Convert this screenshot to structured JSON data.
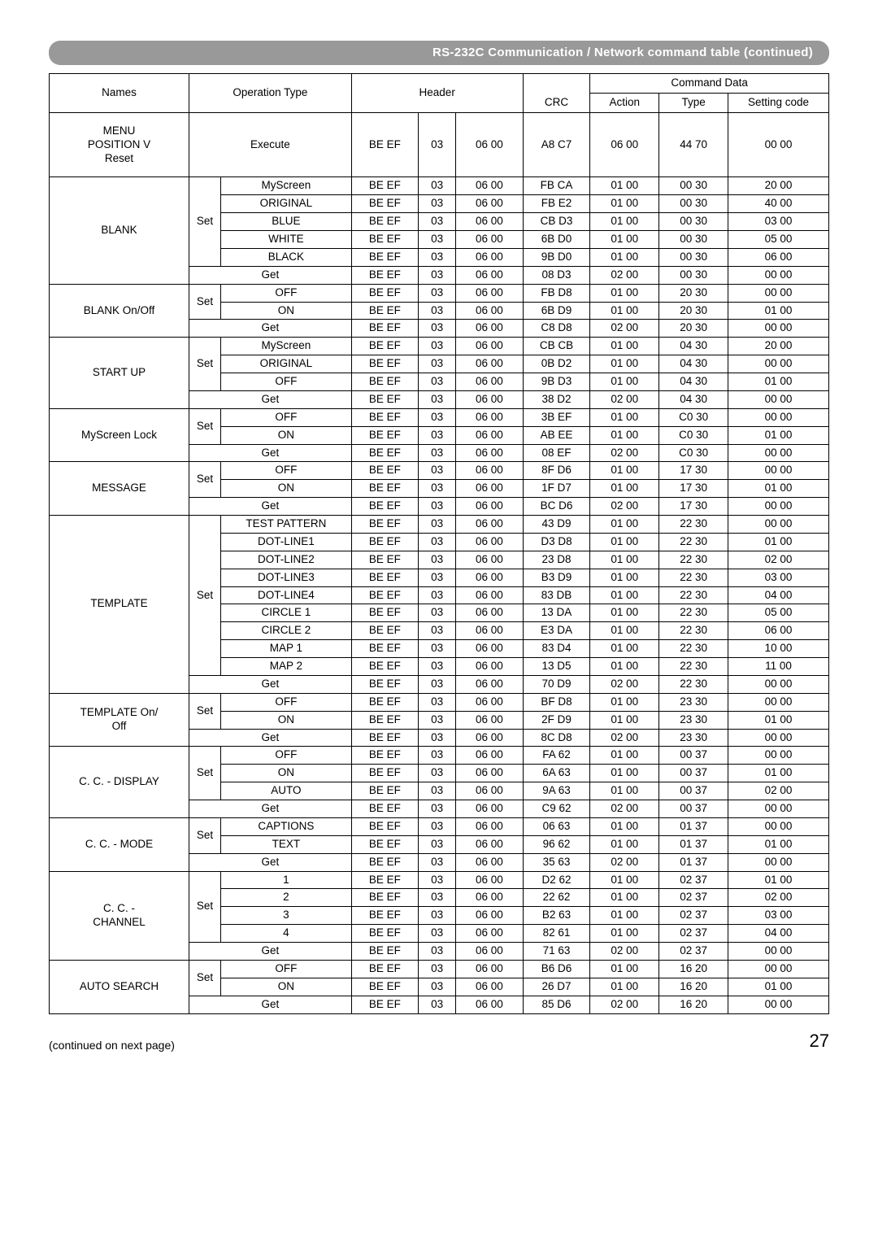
{
  "header_title": "RS-232C Communication / Network command table (continued)",
  "columns": {
    "names": "Names",
    "optype": "Operation Type",
    "header": "Header",
    "crc": "CRC",
    "cmddata": "Command Data",
    "action": "Action",
    "type": "Type",
    "setcode": "Setting code"
  },
  "footer_left": "(continued on next page)",
  "page_number": "27",
  "groups": [
    {
      "name": "MENU POSITION V Reset",
      "rows": [
        {
          "set": null,
          "op": "Execute",
          "h1": "BE EF",
          "h2": "03",
          "h3": "06 00",
          "crc": "A8 C7",
          "action": "06 00",
          "type": "44 70",
          "setcode": "00 00"
        }
      ]
    },
    {
      "name": "BLANK",
      "rows": [
        {
          "set": "Set",
          "setspan": 5,
          "op": "MyScreen",
          "h1": "BE EF",
          "h2": "03",
          "h3": "06 00",
          "crc": "FB CA",
          "action": "01 00",
          "type": "00 30",
          "setcode": "20 00"
        },
        {
          "op": "ORIGINAL",
          "h1": "BE EF",
          "h2": "03",
          "h3": "06 00",
          "crc": "FB E2",
          "action": "01 00",
          "type": "00 30",
          "setcode": "40 00"
        },
        {
          "op": "BLUE",
          "h1": "BE EF",
          "h2": "03",
          "h3": "06 00",
          "crc": "CB D3",
          "action": "01 00",
          "type": "00 30",
          "setcode": "03 00"
        },
        {
          "op": "WHITE",
          "h1": "BE EF",
          "h2": "03",
          "h3": "06 00",
          "crc": "6B D0",
          "action": "01 00",
          "type": "00 30",
          "setcode": "05 00"
        },
        {
          "op": "BLACK",
          "h1": "BE EF",
          "h2": "03",
          "h3": "06 00",
          "crc": "9B D0",
          "action": "01 00",
          "type": "00 30",
          "setcode": "06 00"
        },
        {
          "set": null,
          "op": "Get",
          "opspan": 2,
          "h1": "BE EF",
          "h2": "03",
          "h3": "06 00",
          "crc": "08 D3",
          "action": "02 00",
          "type": "00 30",
          "setcode": "00 00"
        }
      ]
    },
    {
      "name": "BLANK On/Off",
      "rows": [
        {
          "set": "Set",
          "setspan": 2,
          "op": "OFF",
          "h1": "BE EF",
          "h2": "03",
          "h3": "06 00",
          "crc": "FB D8",
          "action": "01 00",
          "type": "20 30",
          "setcode": "00 00"
        },
        {
          "op": "ON",
          "h1": "BE EF",
          "h2": "03",
          "h3": "06 00",
          "crc": "6B D9",
          "action": "01 00",
          "type": "20 30",
          "setcode": "01 00"
        },
        {
          "set": null,
          "op": "Get",
          "opspan": 2,
          "h1": "BE EF",
          "h2": "03",
          "h3": "06 00",
          "crc": "C8 D8",
          "action": "02 00",
          "type": "20 30",
          "setcode": "00 00"
        }
      ]
    },
    {
      "name": "START UP",
      "rows": [
        {
          "set": "Set",
          "setspan": 3,
          "op": "MyScreen",
          "h1": "BE EF",
          "h2": "03",
          "h3": "06 00",
          "crc": "CB CB",
          "action": "01 00",
          "type": "04 30",
          "setcode": "20 00"
        },
        {
          "op": "ORIGINAL",
          "h1": "BE EF",
          "h2": "03",
          "h3": "06 00",
          "crc": "0B D2",
          "action": "01 00",
          "type": "04 30",
          "setcode": "00 00"
        },
        {
          "op": "OFF",
          "h1": "BE EF",
          "h2": "03",
          "h3": "06 00",
          "crc": "9B D3",
          "action": "01 00",
          "type": "04 30",
          "setcode": "01 00"
        },
        {
          "set": null,
          "op": "Get",
          "opspan": 2,
          "h1": "BE EF",
          "h2": "03",
          "h3": "06 00",
          "crc": "38 D2",
          "action": "02 00",
          "type": "04 30",
          "setcode": "00 00"
        }
      ]
    },
    {
      "name": "MyScreen Lock",
      "rows": [
        {
          "set": "Set",
          "setspan": 2,
          "op": "OFF",
          "h1": "BE EF",
          "h2": "03",
          "h3": "06 00",
          "crc": "3B EF",
          "action": "01 00",
          "type": "C0 30",
          "setcode": "00 00"
        },
        {
          "op": "ON",
          "h1": "BE EF",
          "h2": "03",
          "h3": "06 00",
          "crc": "AB EE",
          "action": "01 00",
          "type": "C0 30",
          "setcode": "01 00"
        },
        {
          "set": null,
          "op": "Get",
          "opspan": 2,
          "h1": "BE EF",
          "h2": "03",
          "h3": "06 00",
          "crc": "08 EF",
          "action": "02 00",
          "type": "C0 30",
          "setcode": "00 00"
        }
      ]
    },
    {
      "name": "MESSAGE",
      "rows": [
        {
          "set": "Set",
          "setspan": 2,
          "op": "OFF",
          "h1": "BE EF",
          "h2": "03",
          "h3": "06 00",
          "crc": "8F D6",
          "action": "01 00",
          "type": "17 30",
          "setcode": "00 00"
        },
        {
          "op": "ON",
          "h1": "BE EF",
          "h2": "03",
          "h3": "06 00",
          "crc": "1F D7",
          "action": "01 00",
          "type": "17 30",
          "setcode": "01 00"
        },
        {
          "set": null,
          "op": "Get",
          "opspan": 2,
          "h1": "BE EF",
          "h2": "03",
          "h3": "06 00",
          "crc": "BC D6",
          "action": "02 00",
          "type": "17 30",
          "setcode": "00 00"
        }
      ]
    },
    {
      "name": "TEMPLATE",
      "rows": [
        {
          "set": "Set",
          "setspan": 9,
          "op": "TEST PATTERN",
          "h1": "BE EF",
          "h2": "03",
          "h3": "06 00",
          "crc": "43 D9",
          "action": "01 00",
          "type": "22 30",
          "setcode": "00 00"
        },
        {
          "op": "DOT-LINE1",
          "h1": "BE EF",
          "h2": "03",
          "h3": "06 00",
          "crc": "D3 D8",
          "action": "01 00",
          "type": "22 30",
          "setcode": "01 00"
        },
        {
          "op": "DOT-LINE2",
          "h1": "BE EF",
          "h2": "03",
          "h3": "06 00",
          "crc": "23 D8",
          "action": "01 00",
          "type": "22 30",
          "setcode": "02 00"
        },
        {
          "op": "DOT-LINE3",
          "h1": "BE EF",
          "h2": "03",
          "h3": "06 00",
          "crc": "B3 D9",
          "action": "01 00",
          "type": "22 30",
          "setcode": "03 00"
        },
        {
          "op": "DOT-LINE4",
          "h1": "BE EF",
          "h2": "03",
          "h3": "06 00",
          "crc": "83 DB",
          "action": "01 00",
          "type": "22 30",
          "setcode": "04 00"
        },
        {
          "op": "CIRCLE 1",
          "h1": "BE EF",
          "h2": "03",
          "h3": "06 00",
          "crc": "13 DA",
          "action": "01 00",
          "type": "22 30",
          "setcode": "05 00"
        },
        {
          "op": "CIRCLE 2",
          "h1": "BE EF",
          "h2": "03",
          "h3": "06 00",
          "crc": "E3 DA",
          "action": "01 00",
          "type": "22 30",
          "setcode": "06 00"
        },
        {
          "op": "MAP 1",
          "h1": "BE EF",
          "h2": "03",
          "h3": "06 00",
          "crc": "83 D4",
          "action": "01 00",
          "type": "22 30",
          "setcode": "10 00"
        },
        {
          "op": "MAP 2",
          "h1": "BE EF",
          "h2": "03",
          "h3": "06 00",
          "crc": "13 D5",
          "action": "01 00",
          "type": "22 30",
          "setcode": "11 00"
        },
        {
          "set": null,
          "op": "Get",
          "opspan": 2,
          "h1": "BE EF",
          "h2": "03",
          "h3": "06 00",
          "crc": "70 D9",
          "action": "02 00",
          "type": "22 30",
          "setcode": "00 00"
        }
      ]
    },
    {
      "name": "TEMPLATE On/Off",
      "rows": [
        {
          "set": "Set",
          "setspan": 2,
          "op": "OFF",
          "h1": "BE EF",
          "h2": "03",
          "h3": "06 00",
          "crc": "BF D8",
          "action": "01 00",
          "type": "23 30",
          "setcode": "00 00"
        },
        {
          "op": "ON",
          "h1": "BE EF",
          "h2": "03",
          "h3": "06 00",
          "crc": "2F D9",
          "action": "01 00",
          "type": "23 30",
          "setcode": "01 00"
        },
        {
          "set": null,
          "op": "Get",
          "opspan": 2,
          "h1": "BE EF",
          "h2": "03",
          "h3": "06 00",
          "crc": "8C D8",
          "action": "02 00",
          "type": "23 30",
          "setcode": "00 00"
        }
      ]
    },
    {
      "name": "C. C. - DISPLAY",
      "rows": [
        {
          "set": "Set",
          "setspan": 3,
          "op": "OFF",
          "h1": "BE EF",
          "h2": "03",
          "h3": "06 00",
          "crc": "FA 62",
          "action": "01 00",
          "type": "00 37",
          "setcode": "00 00"
        },
        {
          "op": "ON",
          "h1": "BE EF",
          "h2": "03",
          "h3": "06 00",
          "crc": "6A 63",
          "action": "01 00",
          "type": "00 37",
          "setcode": "01 00"
        },
        {
          "op": "AUTO",
          "h1": "BE EF",
          "h2": "03",
          "h3": "06 00",
          "crc": "9A 63",
          "action": "01 00",
          "type": "00 37",
          "setcode": "02 00"
        },
        {
          "set": null,
          "op": "Get",
          "opspan": 2,
          "h1": "BE EF",
          "h2": "03",
          "h3": "06 00",
          "crc": "C9 62",
          "action": "02 00",
          "type": "00 37",
          "setcode": "00 00"
        }
      ]
    },
    {
      "name": "C. C. - MODE",
      "rows": [
        {
          "set": "Set",
          "setspan": 2,
          "op": "CAPTIONS",
          "h1": "BE EF",
          "h2": "03",
          "h3": "06 00",
          "crc": "06 63",
          "action": "01 00",
          "type": "01 37",
          "setcode": "00 00"
        },
        {
          "op": "TEXT",
          "h1": "BE EF",
          "h2": "03",
          "h3": "06 00",
          "crc": "96 62",
          "action": "01 00",
          "type": "01 37",
          "setcode": "01 00"
        },
        {
          "set": null,
          "op": "Get",
          "opspan": 2,
          "h1": "BE EF",
          "h2": "03",
          "h3": "06 00",
          "crc": "35 63",
          "action": "02 00",
          "type": "01 37",
          "setcode": "00 00"
        }
      ]
    },
    {
      "name": "C. C. - CHANNEL",
      "rows": [
        {
          "set": "Set",
          "setspan": 4,
          "op": "1",
          "h1": "BE EF",
          "h2": "03",
          "h3": "06 00",
          "crc": "D2 62",
          "action": "01 00",
          "type": "02 37",
          "setcode": "01 00"
        },
        {
          "op": "2",
          "h1": "BE EF",
          "h2": "03",
          "h3": "06 00",
          "crc": "22 62",
          "action": "01 00",
          "type": "02 37",
          "setcode": "02 00"
        },
        {
          "op": "3",
          "h1": "BE EF",
          "h2": "03",
          "h3": "06 00",
          "crc": "B2 63",
          "action": "01 00",
          "type": "02 37",
          "setcode": "03 00"
        },
        {
          "op": "4",
          "h1": "BE EF",
          "h2": "03",
          "h3": "06 00",
          "crc": "82 61",
          "action": "01 00",
          "type": "02 37",
          "setcode": "04 00"
        },
        {
          "set": null,
          "op": "Get",
          "opspan": 2,
          "h1": "BE EF",
          "h2": "03",
          "h3": "06 00",
          "crc": "71 63",
          "action": "02 00",
          "type": "02 37",
          "setcode": "00 00"
        }
      ]
    },
    {
      "name": "AUTO SEARCH",
      "rows": [
        {
          "set": "Set",
          "setspan": 2,
          "op": "OFF",
          "h1": "BE EF",
          "h2": "03",
          "h3": "06 00",
          "crc": "B6 D6",
          "action": "01 00",
          "type": "16 20",
          "setcode": "00 00"
        },
        {
          "op": "ON",
          "h1": "BE EF",
          "h2": "03",
          "h3": "06 00",
          "crc": "26 D7",
          "action": "01 00",
          "type": "16 20",
          "setcode": "01 00"
        },
        {
          "set": null,
          "op": "Get",
          "opspan": 2,
          "h1": "BE EF",
          "h2": "03",
          "h3": "06 00",
          "crc": "85 D6",
          "action": "02 00",
          "type": "16 20",
          "setcode": "00 00"
        }
      ]
    }
  ]
}
